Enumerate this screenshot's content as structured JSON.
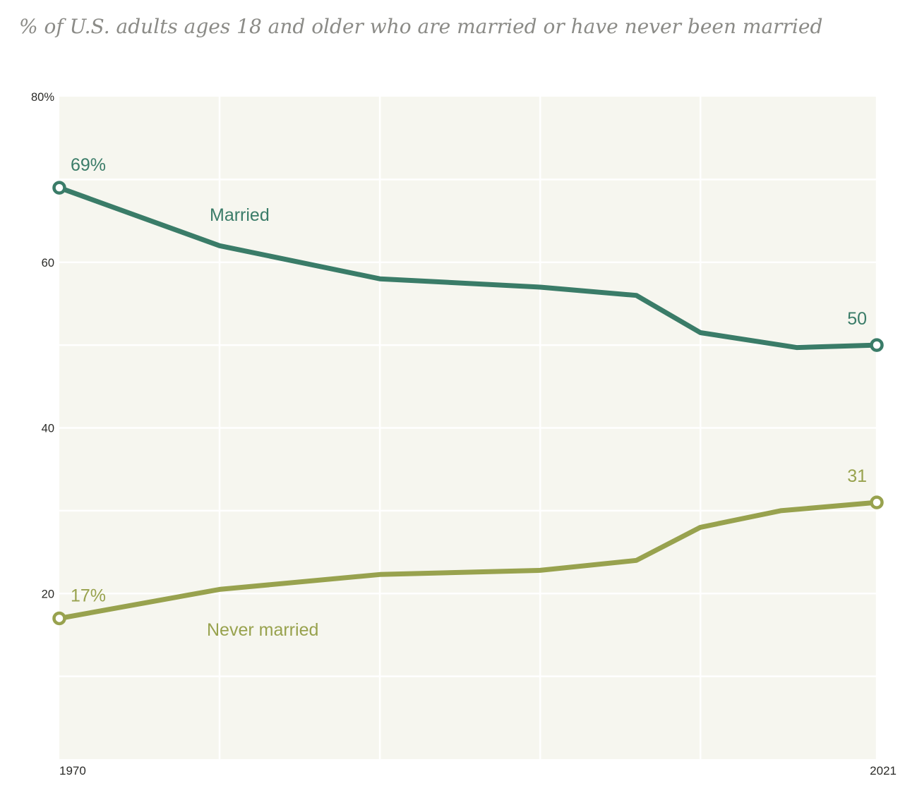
{
  "title": "% of U.S. adults ages 18 and older who are married or have never been married",
  "colors": {
    "married": "#3a7c68",
    "never_married": "#98a24e",
    "plot_background": "#f6f6ef",
    "gridline": "#ffffff",
    "title_text": "#8b8b87",
    "axis_text": "#2b2b28",
    "page_background": "#ffffff"
  },
  "chart_data": {
    "type": "line",
    "title": "% of U.S. adults ages 18 and older who are married or have never been married",
    "x_axis": {
      "min": 1970,
      "max": 2021,
      "tick_labels": [
        "1970",
        "2021"
      ],
      "gridline_years": [
        1980,
        1990,
        2000,
        2010,
        2021
      ],
      "grid": true
    },
    "y_axis": {
      "min": 0,
      "max": 80,
      "gridline_step": 10,
      "ticks": [
        {
          "value": 80,
          "label": "80%"
        },
        {
          "value": 60,
          "label": "60"
        },
        {
          "value": 40,
          "label": "40"
        },
        {
          "value": 20,
          "label": "20"
        }
      ],
      "grid": true
    },
    "legend_position": "inline",
    "series": [
      {
        "name": "Married",
        "color_key": "married",
        "start_label": "69%",
        "end_label": "50",
        "points": [
          [
            1970,
            69
          ],
          [
            1980,
            62
          ],
          [
            1990,
            58
          ],
          [
            2000,
            57
          ],
          [
            2006,
            56
          ],
          [
            2010,
            51.5
          ],
          [
            2016,
            49.7
          ],
          [
            2021,
            50
          ]
        ]
      },
      {
        "name": "Never married",
        "color_key": "never_married",
        "start_label": "17%",
        "end_label": "31",
        "points": [
          [
            1970,
            17
          ],
          [
            1980,
            20.5
          ],
          [
            1990,
            22.3
          ],
          [
            2000,
            22.8
          ],
          [
            2006,
            24
          ],
          [
            2010,
            28
          ],
          [
            2015,
            30
          ],
          [
            2021,
            31
          ]
        ]
      }
    ]
  }
}
